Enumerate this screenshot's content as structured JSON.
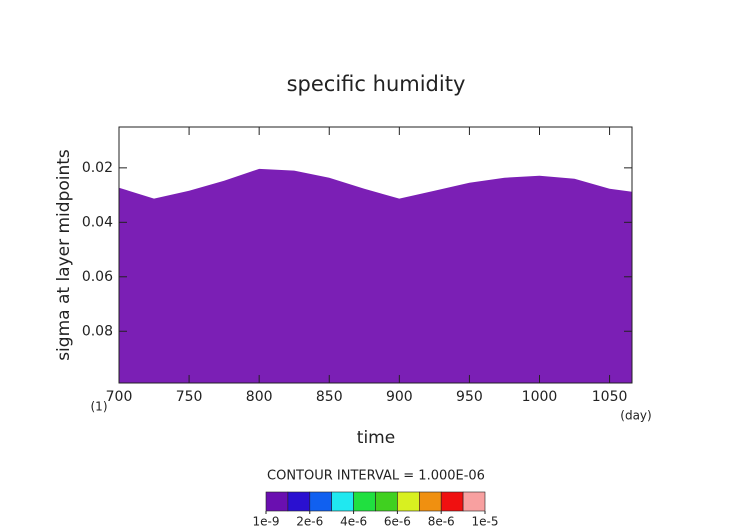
{
  "chart_data": {
    "type": "area",
    "title": "specific humidity",
    "xlabel": "time",
    "ylabel": "sigma at layer midpoints",
    "origin_label": "(1)",
    "x_unit": "(day)",
    "x": [
      700,
      725,
      750,
      775,
      800,
      825,
      850,
      875,
      900,
      925,
      950,
      975,
      1000,
      1025,
      1050,
      1066
    ],
    "values": [
      0.0273,
      0.0313,
      0.0284,
      0.0247,
      0.0204,
      0.021,
      0.0236,
      0.0277,
      0.0313,
      0.0284,
      0.0255,
      0.0236,
      0.0229,
      0.024,
      0.0277,
      0.0288
    ],
    "color": "#7b1fb5",
    "xlim": [
      700,
      1066
    ],
    "xticks": [
      700,
      750,
      800,
      850,
      900,
      950,
      1000,
      1050
    ],
    "ylim": [
      0.099,
      0.005
    ],
    "yticks": [
      0.02,
      0.04,
      0.06,
      0.08
    ],
    "contour_interval": "CONTOUR INTERVAL = 1.000E-06",
    "colorbar": {
      "colors": [
        "#6a0fb0",
        "#2a10d0",
        "#1060f0",
        "#20e8f0",
        "#20e040",
        "#40d020",
        "#d8f020",
        "#f09010",
        "#f01010",
        "#f8a0a0"
      ],
      "range": [
        1e-09,
        1e-05
      ],
      "ticks": [
        {
          "value": 1e-09,
          "label": "1e-9"
        },
        {
          "value": 2e-06,
          "label": "2e-6"
        },
        {
          "value": 4e-06,
          "label": "4e-6"
        },
        {
          "value": 6e-06,
          "label": "6e-6"
        },
        {
          "value": 8e-06,
          "label": "8e-6"
        },
        {
          "value": 1e-05,
          "label": "1e-5"
        }
      ]
    }
  }
}
